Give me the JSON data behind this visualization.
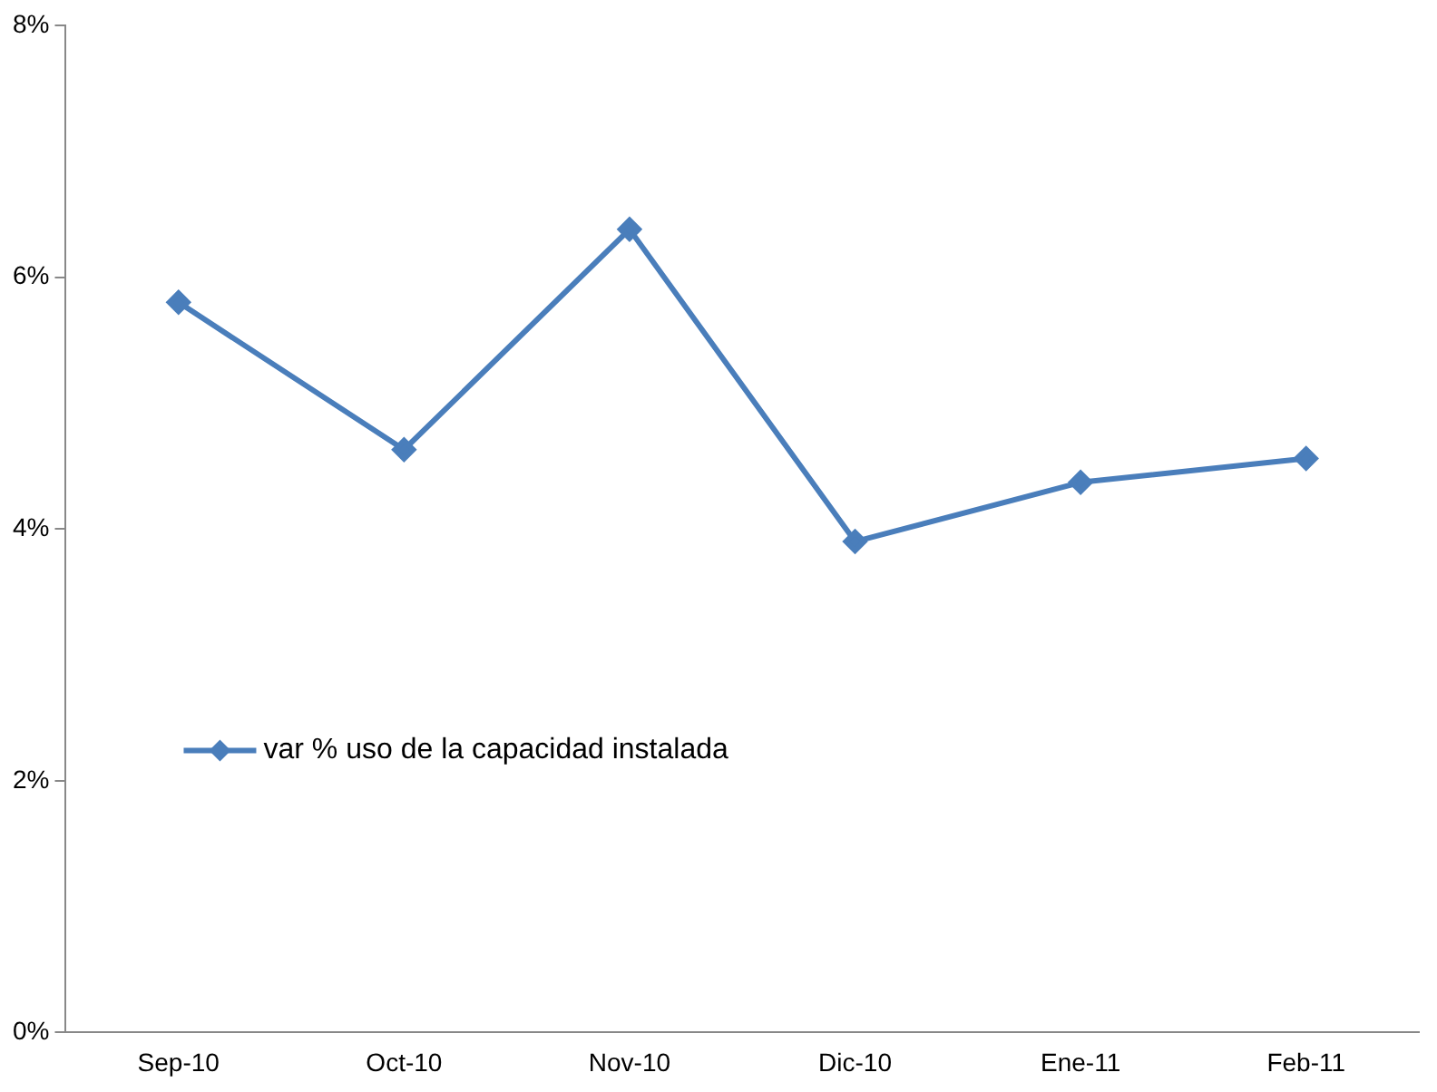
{
  "chart_data": {
    "type": "line",
    "categories": [
      "Sep-10",
      "Oct-10",
      "Nov-10",
      "Dic-10",
      "Ene-11",
      "Feb-11"
    ],
    "series": [
      {
        "name": "var % uso de la capacidad instalada",
        "color": "#4a7ebb",
        "values": [
          5.8,
          4.63,
          6.38,
          3.9,
          4.37,
          4.56
        ]
      }
    ],
    "ylim": [
      0,
      8
    ],
    "yticks": [
      {
        "value": 0,
        "label": "0%"
      },
      {
        "value": 2,
        "label": "2%"
      },
      {
        "value": 4,
        "label": "4%"
      },
      {
        "value": 6,
        "label": "6%"
      },
      {
        "value": 8,
        "label": "8%"
      }
    ],
    "grid": false,
    "legend": "left",
    "marker": "diamond",
    "line_style": "solid"
  }
}
